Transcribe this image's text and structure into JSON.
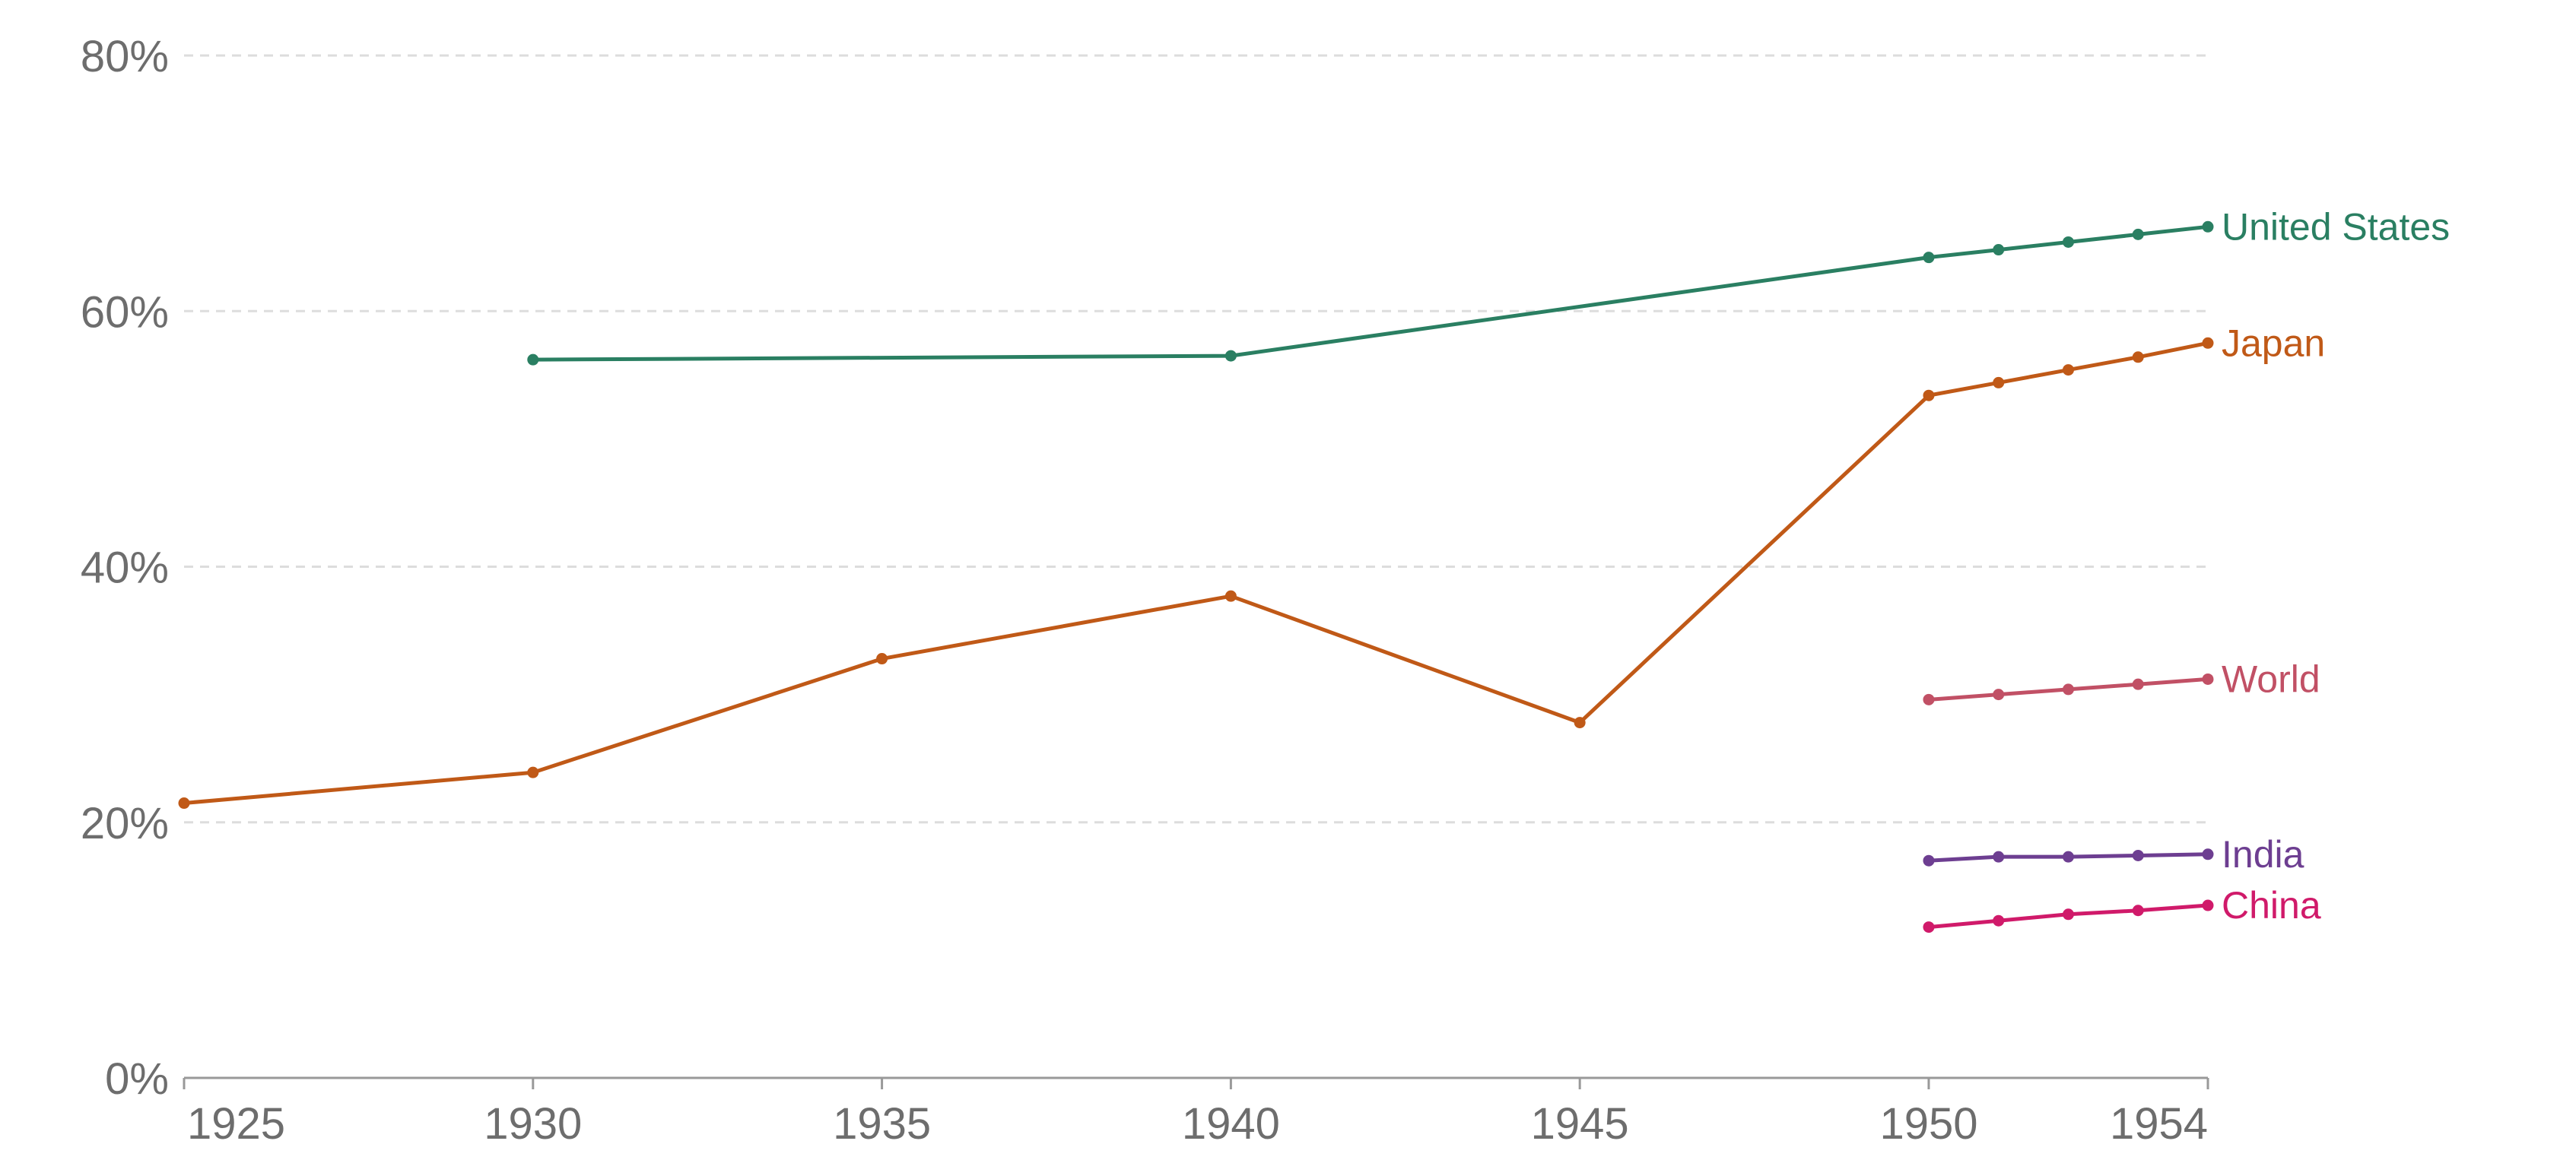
{
  "chart_data": {
    "type": "line",
    "title": "",
    "xlabel": "",
    "ylabel": "",
    "xlim": [
      1925,
      1954
    ],
    "ylim": [
      0,
      80
    ],
    "x_ticks": [
      1925,
      1930,
      1935,
      1940,
      1945,
      1950,
      1954
    ],
    "x_tick_labels": [
      "1925",
      "1930",
      "1935",
      "1940",
      "1945",
      "1950",
      "1954"
    ],
    "y_ticks": [
      0,
      20,
      40,
      60,
      80
    ],
    "y_tick_labels": [
      "0%",
      "20%",
      "40%",
      "60%",
      "80%"
    ],
    "grid": "horizontal-dashed",
    "legend": "labels at line ends (right)",
    "series": [
      {
        "name": "United States",
        "color": "#2a7f62",
        "x": [
          1930,
          1940,
          1950,
          1951,
          1952,
          1953,
          1954
        ],
        "values": [
          56.2,
          56.5,
          64.2,
          64.8,
          65.4,
          66.0,
          66.6
        ]
      },
      {
        "name": "Japan",
        "color": "#c05917",
        "x": [
          1925,
          1930,
          1935,
          1940,
          1945,
          1950,
          1951,
          1952,
          1953,
          1954
        ],
        "values": [
          21.5,
          23.9,
          32.8,
          37.7,
          27.8,
          53.4,
          54.4,
          55.4,
          56.4,
          57.5
        ]
      },
      {
        "name": "World",
        "color": "#c15065",
        "x": [
          1950,
          1951,
          1952,
          1953,
          1954
        ],
        "values": [
          29.6,
          30.0,
          30.4,
          30.8,
          31.2
        ]
      },
      {
        "name": "India",
        "color": "#6d3e91",
        "x": [
          1950,
          1951,
          1952,
          1953,
          1954
        ],
        "values": [
          17.0,
          17.3,
          17.3,
          17.4,
          17.5
        ]
      },
      {
        "name": "China",
        "color": "#d01a6a",
        "x": [
          1950,
          1951,
          1952,
          1953,
          1954
        ],
        "values": [
          11.8,
          12.3,
          12.8,
          13.1,
          13.5
        ]
      }
    ]
  }
}
